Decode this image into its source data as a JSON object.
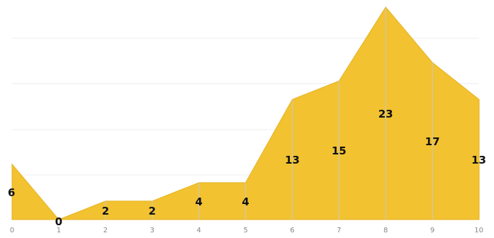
{
  "chart_data": {
    "type": "area",
    "x": [
      0,
      1,
      2,
      3,
      4,
      5,
      6,
      7,
      8,
      9,
      10
    ],
    "values": [
      6,
      0,
      2,
      2,
      4,
      4,
      13,
      15,
      23,
      17,
      13
    ],
    "tick_labels": [
      "0",
      "1",
      "2",
      "3",
      "4",
      "5",
      "6",
      "7",
      "8",
      "9",
      "10"
    ],
    "data_labels": [
      "6",
      "0",
      "2",
      "2",
      "4",
      "4",
      "13",
      "15",
      "23",
      "17",
      "13"
    ],
    "title": "",
    "xlabel": "",
    "ylabel": "",
    "xlim": [
      0,
      10
    ],
    "ylim": [
      0,
      23
    ],
    "y_axis_visible": false,
    "grid": true,
    "legend": "none",
    "colors": {
      "fill": "#f2c230",
      "stroke": "#e6b323",
      "grid": "#ececec",
      "vertical_lines": "#c9c9c9"
    }
  }
}
